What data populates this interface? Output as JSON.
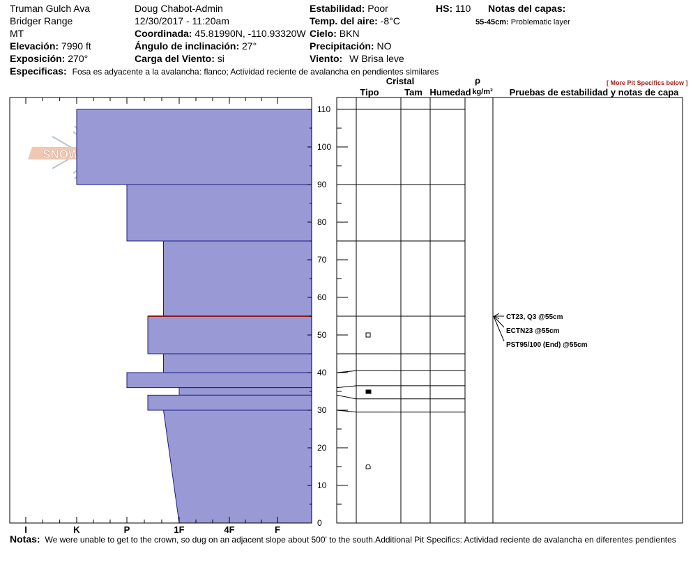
{
  "header": {
    "location": "Truman Gulch Ava",
    "range": "Bridger Range",
    "state": "MT",
    "elevation_label": "Elevación:",
    "elevation_value": "7990 ft",
    "aspect_label": "Exposición:",
    "aspect_value": "270°",
    "observer": "Doug Chabot-Admin",
    "datetime": "12/30/2017 - 11:20am",
    "coord_label": "Coordinada:",
    "coord_value": "45.81990N, -110.93320W",
    "slope_label": "Ángulo de inclinación:",
    "slope_value": "27°",
    "windload_label": "Carga del Viento:",
    "windload_value": "si",
    "stability_label": "Estabilidad:",
    "stability_value": "Poor",
    "airtemp_label": "Temp. del aire:",
    "airtemp_value": "-8°C",
    "sky_label": "Cielo:",
    "sky_value": "BKN",
    "precip_label": "Precipitación:",
    "precip_value": "NO",
    "wind_label": "Viento:",
    "wind_value": "W Brisa leve",
    "hs_label": "HS:",
    "hs_value": "110",
    "layer_notes_title": "Notas del capas:",
    "layer_note_range": "55-45cm:",
    "layer_note_text": "Problematic layer",
    "specifics_label": "Especificas:",
    "specifics_value": "Fosa es adyacente a la avalancha: flanco;  Actividad reciente de avalancha en pendientes similares",
    "more_link": "[ More Pit Specifics below ]"
  },
  "columns": {
    "cristal": "Cristal",
    "tipo": "Tipo",
    "tam": "Tam",
    "humedad": "Humedad",
    "rho": "ρ",
    "density_unit": "kg/m³",
    "tests": "Pruebas de estabilidad y notas de capa"
  },
  "logo_text": "SNOW PILOT",
  "tests": [
    {
      "label": "CT23, Q3 @55cm"
    },
    {
      "label": "ECTN23 @55cm"
    },
    {
      "label": "PST95/100 (End) @55cm"
    }
  ],
  "notes": {
    "label": "Notas:",
    "text": "We were unable to get to the crown, so dug on an adjacent slope about 500' to the south.Additional Pit Specifics: Actividad reciente de avalancha en diferentes pendientes"
  },
  "colors": {
    "fill": "#9999d5",
    "edge": "#1a1a8c",
    "weak_layer": "#8b1a1a"
  },
  "chart_data": {
    "type": "bar",
    "orientation": "horizontal snow-profile",
    "x_categories": [
      "I",
      "K",
      "P",
      "1F",
      "4F",
      "F"
    ],
    "y_axis": {
      "min": 0,
      "max": 110,
      "ticks": [
        0,
        10,
        20,
        30,
        40,
        50,
        60,
        70,
        80,
        90,
        100,
        110
      ]
    },
    "layers": [
      {
        "top": 110,
        "bottom": 90,
        "hardness": 1.0
      },
      {
        "top": 90,
        "bottom": 75,
        "hardness": 2.0
      },
      {
        "top": 75,
        "bottom": 55,
        "hardness": 2.7
      },
      {
        "top": 55,
        "bottom": 45,
        "hardness": 2.4
      },
      {
        "top": 45,
        "bottom": 40,
        "hardness": 2.7
      },
      {
        "top": 40,
        "bottom": 36,
        "hardness": 2.0
      },
      {
        "top": 36,
        "bottom": 34,
        "hardness": 3.0
      },
      {
        "top": 34,
        "bottom": 30,
        "hardness": 2.4
      },
      {
        "top": 30,
        "bottom": 0,
        "hardness": 2.7,
        "hardness_bottom": 3.0
      }
    ],
    "weak_layer_depth": 55,
    "stratigraphy_lines": [
      110,
      90,
      75,
      55,
      45,
      40.5,
      36.5,
      33,
      29.5
    ],
    "grain_symbols": [
      {
        "height": 50,
        "shape": "open-square"
      },
      {
        "height": 35,
        "shape": "filled-square"
      },
      {
        "height": 15,
        "shape": "dome"
      }
    ],
    "test_depth": 55
  }
}
